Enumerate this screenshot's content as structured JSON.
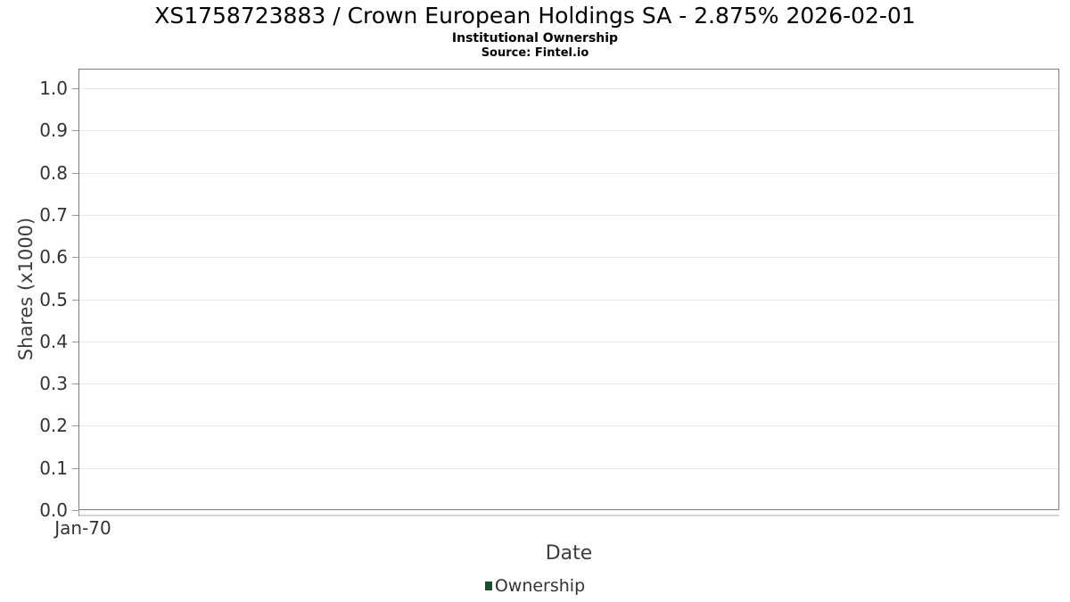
{
  "chart_data": {
    "type": "line",
    "title": "XS1758723883 / Crown European Holdings SA - 2.875% 2026-02-01",
    "subtitle": "Institutional Ownership",
    "source": "Source: Fintel.io",
    "xlabel": "Date",
    "ylabel": "Shares (x1000)",
    "x_ticks": [
      "Jan-70"
    ],
    "y_ticks": [
      "0.0",
      "0.1",
      "0.2",
      "0.3",
      "0.4",
      "0.5",
      "0.6",
      "0.7",
      "0.8",
      "0.9",
      "1.0"
    ],
    "ylim": [
      0,
      1.047
    ],
    "grid": true,
    "legend_position": "bottom",
    "series": [
      {
        "name": "Ownership",
        "color": "#1e4d2b",
        "values": []
      }
    ]
  },
  "colors": {
    "background": "#ffffff",
    "title_text": "#000000",
    "tick_label": "#333333",
    "axis_title": "#3d3d3d",
    "plot_border": "#7d7d7d",
    "gridline": "#e6e6e6",
    "tick_mark": "#999999",
    "x_axis_line": "#d4d4d4",
    "legend_swatch": "#1e4d2b"
  }
}
